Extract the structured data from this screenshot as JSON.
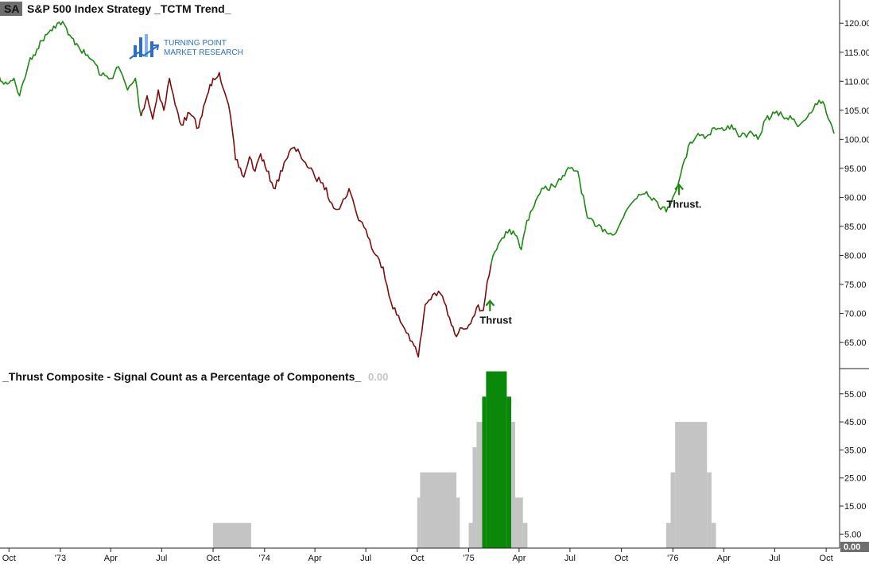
{
  "colors": {
    "bullish": "#1a8a10",
    "bearish": "#7a0e0e",
    "bar_gray": "#c4c4c4",
    "bar_green": "#098809",
    "axis": "#222222",
    "symbol_bg": "#6e6e6e",
    "logo": "#2a6fc9"
  },
  "header": {
    "symbol": "SA",
    "title": "S&P 500 Index  Strategy  _TCTM Trend_"
  },
  "logo": {
    "line1": "TURNING POINT",
    "line2": "MARKET RESEARCH",
    "icon": "bar-chart-arrow-icon"
  },
  "chart_data": [
    {
      "type": "line",
      "title": "S&P 500 Index  Strategy  _TCTM Trend_",
      "ylim": [
        60.5,
        124
      ],
      "yticks": [
        "65.00",
        "70.00",
        "75.00",
        "80.00",
        "85.00",
        "90.00",
        "95.00",
        "100.00",
        "105.00",
        "110.00",
        "115.00",
        "120.00"
      ],
      "series": [
        {
          "color_state": "bullish",
          "x": [
            "1972-09-01",
            "1972-09-22",
            "1972-10-10",
            "1972-10-20",
            "1972-11-05",
            "1972-11-20",
            "1972-12-05",
            "1972-12-20",
            "1973-01-05",
            "1973-01-15",
            "1973-01-30",
            "1973-02-15",
            "1973-03-01",
            "1973-03-15",
            "1973-04-01",
            "1973-04-15",
            "1973-05-01",
            "1973-05-15",
            "1973-05-25"
          ],
          "values": [
            112.5,
            109.5,
            110.5,
            107.5,
            113.0,
            115.5,
            118.0,
            119.5,
            120.3,
            118.0,
            116.5,
            114.5,
            113.5,
            111.0,
            110.5,
            112.5,
            108.5,
            110.5,
            104.0
          ]
        },
        {
          "color_state": "bearish",
          "x": [
            "1973-05-25",
            "1973-06-05",
            "1973-06-15",
            "1973-06-25",
            "1973-07-05",
            "1973-07-15",
            "1973-07-25",
            "1973-08-05",
            "1973-08-20",
            "1973-09-05",
            "1973-09-20",
            "1973-10-01",
            "1973-10-12",
            "1973-10-22",
            "1973-11-01",
            "1973-11-10",
            "1973-11-25",
            "1973-12-05",
            "1973-12-15",
            "1973-12-25",
            "1974-01-05",
            "1974-01-20",
            "1974-02-05",
            "1974-02-20",
            "1974-03-05",
            "1974-03-15",
            "1974-04-01",
            "1974-04-15",
            "1974-05-01",
            "1974-05-15",
            "1974-06-01",
            "1974-06-15",
            "1974-07-01",
            "1974-07-15",
            "1974-08-01",
            "1974-08-15",
            "1974-09-01",
            "1974-09-15",
            "1974-09-25",
            "1974-10-03",
            "1974-10-15",
            "1974-11-01",
            "1974-11-15",
            "1974-12-01",
            "1974-12-10",
            "1974-12-20",
            "1975-01-01",
            "1975-01-15",
            "1975-01-27",
            "1975-02-03",
            "1975-02-10"
          ],
          "values": [
            104.0,
            107.5,
            103.5,
            108.5,
            105.0,
            110.5,
            106.0,
            102.5,
            104.5,
            102.0,
            107.5,
            110.5,
            111.5,
            108.0,
            104.0,
            96.5,
            93.5,
            97.0,
            94.5,
            97.5,
            94.5,
            91.5,
            96.0,
            98.5,
            97.5,
            96.0,
            93.5,
            92.5,
            89.0,
            88.0,
            91.5,
            87.0,
            84.5,
            80.5,
            78.0,
            72.0,
            68.5,
            66.5,
            64.5,
            62.5,
            71.5,
            73.5,
            73.0,
            68.0,
            66.0,
            67.5,
            68.0,
            71.0,
            70.5,
            75.5,
            78.5
          ]
        },
        {
          "color_state": "bullish",
          "x": [
            "1975-02-10",
            "1975-02-20",
            "1975-03-05",
            "1975-03-15",
            "1975-03-25",
            "1975-04-05",
            "1975-04-15",
            "1975-05-01",
            "1975-05-15",
            "1975-06-01",
            "1975-06-15",
            "1975-07-01",
            "1975-07-15",
            "1975-08-01",
            "1975-08-15",
            "1975-09-01",
            "1975-09-15",
            "1975-10-01",
            "1975-10-15",
            "1975-11-01",
            "1975-11-15",
            "1975-12-01",
            "1975-12-20",
            "1976-01-01",
            "1976-01-15",
            "1976-02-01",
            "1976-02-15",
            "1976-03-01",
            "1976-03-15",
            "1976-04-01",
            "1976-04-15",
            "1976-05-01",
            "1976-05-15",
            "1976-06-01",
            "1976-06-15",
            "1976-07-01",
            "1976-07-15",
            "1976-08-01",
            "1976-08-15",
            "1976-09-01",
            "1976-09-15",
            "1976-09-25",
            "1976-10-05",
            "1976-10-15"
          ],
          "values": [
            78.5,
            81.0,
            83.0,
            84.5,
            83.5,
            81.0,
            86.0,
            89.5,
            91.5,
            92.0,
            93.0,
            95.0,
            94.5,
            86.5,
            85.0,
            84.5,
            83.5,
            86.0,
            88.5,
            90.5,
            91.0,
            89.5,
            87.5,
            90.0,
            94.0,
            99.5,
            101.0,
            100.5,
            102.0,
            101.5,
            102.5,
            100.5,
            101.0,
            100.0,
            103.5,
            104.5,
            104.0,
            103.5,
            102.5,
            104.5,
            106.0,
            106.5,
            103.5,
            101.0
          ]
        }
      ],
      "annotations": [
        {
          "text": "Thrust",
          "x": "1975-02-01",
          "y": 68.2,
          "arrow_at": "1975-02-08"
        },
        {
          "text": "Thrust.",
          "x": "1976-01-01",
          "y": 88.2,
          "arrow_at": "1976-01-12"
        }
      ]
    },
    {
      "type": "bar",
      "title": "_Thrust Composite - Signal Count as a Percentage of Components_",
      "value_label": "0.00",
      "last_value": "0.00",
      "ylim": [
        0,
        64
      ],
      "yticks": [
        "5.00",
        "15.00",
        "25.00",
        "35.00",
        "45.00",
        "55.00"
      ],
      "bars": [
        {
          "start": "1973-10-01",
          "end": "1973-12-08",
          "value": 9,
          "color_state": "gray"
        },
        {
          "start": "1974-10-01",
          "end": "1974-10-06",
          "value": 18,
          "color_state": "gray"
        },
        {
          "start": "1974-10-06",
          "end": "1974-12-10",
          "value": 27,
          "color_state": "gray"
        },
        {
          "start": "1974-12-10",
          "end": "1974-12-16",
          "value": 18,
          "color_state": "gray"
        },
        {
          "start": "1975-01-01",
          "end": "1975-01-08",
          "value": 9,
          "color_state": "gray"
        },
        {
          "start": "1975-01-08",
          "end": "1975-01-15",
          "value": 36,
          "color_state": "gray"
        },
        {
          "start": "1975-01-15",
          "end": "1975-01-25",
          "value": 45,
          "color_state": "gray"
        },
        {
          "start": "1975-01-25",
          "end": "1975-02-01",
          "value": 54,
          "color_state": "green"
        },
        {
          "start": "1975-02-01",
          "end": "1975-03-10",
          "value": 63,
          "color_state": "green"
        },
        {
          "start": "1975-03-10",
          "end": "1975-03-18",
          "value": 54,
          "color_state": "green"
        },
        {
          "start": "1975-03-18",
          "end": "1975-03-25",
          "value": 45,
          "color_state": "gray"
        },
        {
          "start": "1975-03-25",
          "end": "1975-04-08",
          "value": 18,
          "color_state": "gray"
        },
        {
          "start": "1975-04-08",
          "end": "1975-04-16",
          "value": 9,
          "color_state": "gray"
        },
        {
          "start": "1975-12-20",
          "end": "1975-12-28",
          "value": 9,
          "color_state": "gray"
        },
        {
          "start": "1975-12-28",
          "end": "1976-01-05",
          "value": 27,
          "color_state": "gray"
        },
        {
          "start": "1976-01-05",
          "end": "1976-03-02",
          "value": 45,
          "color_state": "gray"
        },
        {
          "start": "1976-03-02",
          "end": "1976-03-10",
          "value": 27,
          "color_state": "gray"
        },
        {
          "start": "1976-03-10",
          "end": "1976-03-18",
          "value": 9,
          "color_state": "gray"
        }
      ]
    }
  ],
  "x_axis": {
    "range": [
      "1972-09-15",
      "1976-10-25"
    ],
    "ticks": [
      {
        "label": "Oct",
        "date": "1972-10-01"
      },
      {
        "label": "'73",
        "date": "1973-01-01"
      },
      {
        "label": "Apr",
        "date": "1973-04-01"
      },
      {
        "label": "Jul",
        "date": "1973-07-01"
      },
      {
        "label": "Oct",
        "date": "1973-10-01"
      },
      {
        "label": "'74",
        "date": "1974-01-01"
      },
      {
        "label": "Apr",
        "date": "1974-04-01"
      },
      {
        "label": "Jul",
        "date": "1974-07-01"
      },
      {
        "label": "Oct",
        "date": "1974-10-01"
      },
      {
        "label": "'75",
        "date": "1975-01-01"
      },
      {
        "label": "Apr",
        "date": "1975-04-01"
      },
      {
        "label": "Jul",
        "date": "1975-07-01"
      },
      {
        "label": "Oct",
        "date": "1975-10-01"
      },
      {
        "label": "'76",
        "date": "1976-01-01"
      },
      {
        "label": "Apr",
        "date": "1976-04-01"
      },
      {
        "label": "Jul",
        "date": "1976-07-01"
      },
      {
        "label": "Oct",
        "date": "1976-10-01"
      }
    ]
  }
}
